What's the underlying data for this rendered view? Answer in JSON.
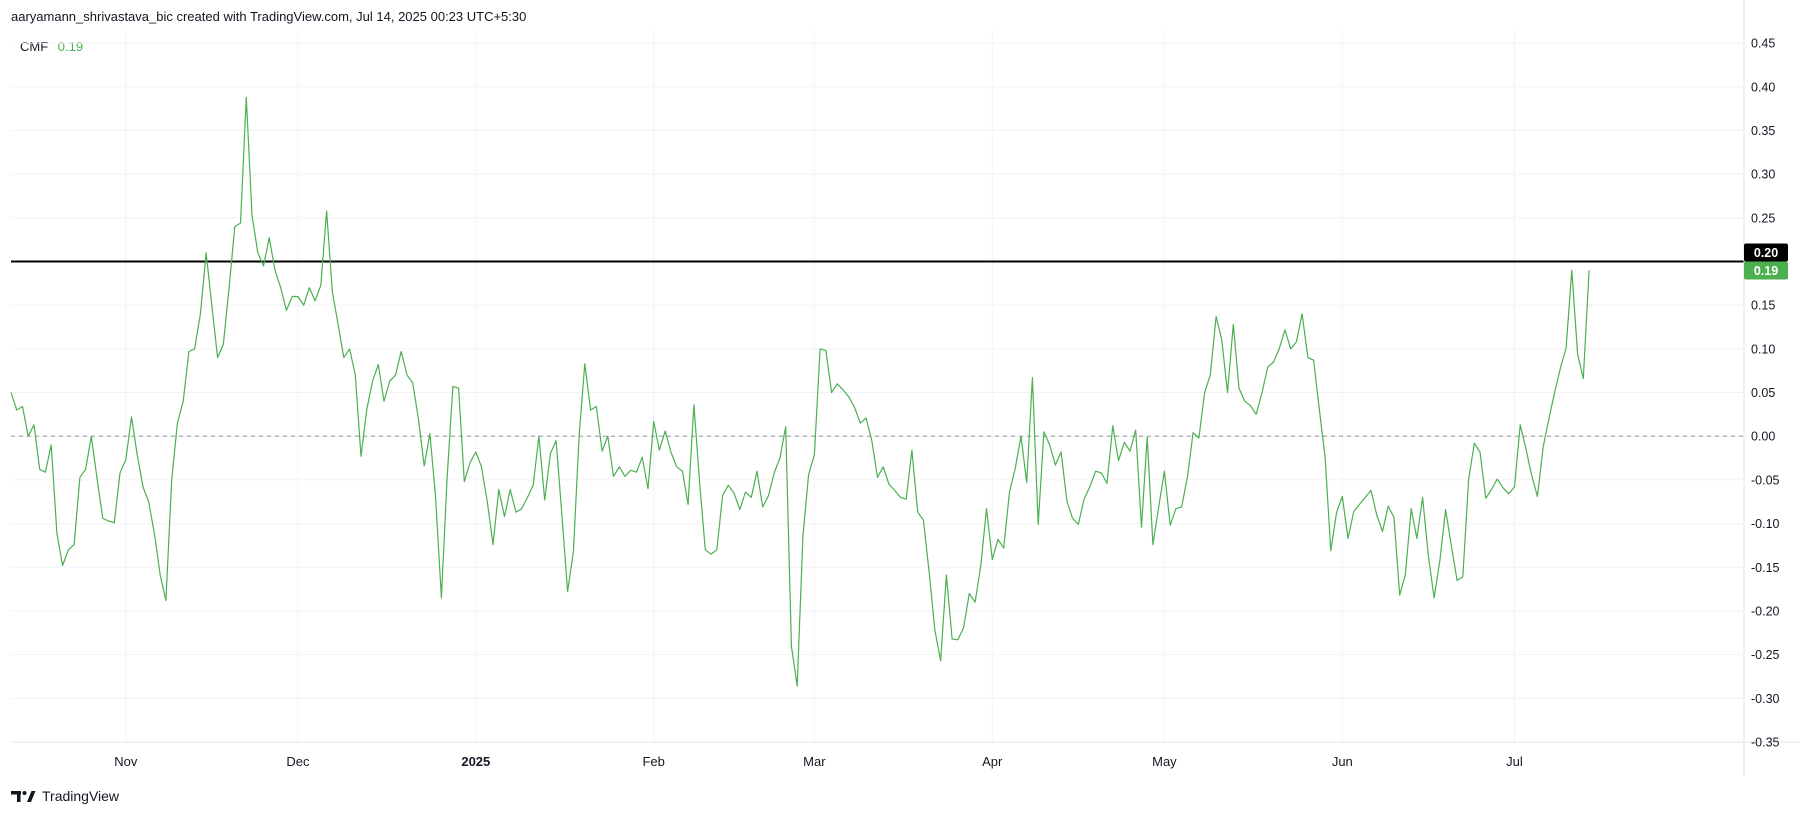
{
  "header": {
    "attribution": "aaryamann_shrivastava_bic created with TradingView.com, Jul 14, 2025 00:23 UTC+5:30"
  },
  "legend": {
    "indicator": "CMF",
    "value": "0.19"
  },
  "footer": {
    "brand": "TradingView",
    "logo_icon": "tradingview-logo-icon"
  },
  "colors": {
    "series": "#4caf50",
    "reference_line": "#000000",
    "grid": "#f0f3fa",
    "axis_text": "#131722",
    "zero_line": "#9598a1"
  },
  "chart_data": {
    "type": "line",
    "x_axis": {
      "type": "date",
      "range": [
        "2024-10-12",
        "2025-08-10"
      ],
      "ticks": [
        {
          "date": "2024-11-01",
          "label": "Nov",
          "bold": false
        },
        {
          "date": "2024-12-01",
          "label": "Dec",
          "bold": false
        },
        {
          "date": "2025-01-01",
          "label": "2025",
          "bold": true
        },
        {
          "date": "2025-02-01",
          "label": "Feb",
          "bold": false
        },
        {
          "date": "2025-03-01",
          "label": "Mar",
          "bold": false
        },
        {
          "date": "2025-04-01",
          "label": "Apr",
          "bold": false
        },
        {
          "date": "2025-05-01",
          "label": "May",
          "bold": false
        },
        {
          "date": "2025-06-01",
          "label": "Jun",
          "bold": false
        },
        {
          "date": "2025-07-01",
          "label": "Jul",
          "bold": false
        }
      ]
    },
    "y_axis": {
      "range": [
        -0.35,
        0.465
      ],
      "ticks": [
        "0.45",
        "0.40",
        "0.35",
        "0.30",
        "0.25",
        "0.20",
        "0.15",
        "0.10",
        "0.05",
        "0.00",
        "-0.05",
        "-0.10",
        "-0.15",
        "-0.20",
        "-0.25",
        "-0.30",
        "-0.35"
      ]
    },
    "grid": true,
    "zero_line": {
      "value": 0,
      "style": "dashed"
    },
    "reference_line": {
      "value": 0.2,
      "label": "0.20"
    },
    "last_value_label": "0.19",
    "series": [
      {
        "name": "CMF",
        "start": "2024-10-12",
        "step_days": 1,
        "values": [
          0.05,
          0.03,
          0.034,
          0.0,
          0.013,
          -0.038,
          -0.041,
          -0.01,
          -0.111,
          -0.148,
          -0.13,
          -0.124,
          -0.047,
          -0.038,
          0.0,
          -0.049,
          -0.094,
          -0.097,
          -0.099,
          -0.042,
          -0.027,
          0.022,
          -0.021,
          -0.058,
          -0.075,
          -0.112,
          -0.159,
          -0.188,
          -0.05,
          0.015,
          0.04,
          0.097,
          0.1,
          0.14,
          0.21,
          0.15,
          0.09,
          0.105,
          0.17,
          0.24,
          0.244,
          0.388,
          0.253,
          0.21,
          0.195,
          0.227,
          0.19,
          0.17,
          0.144,
          0.16,
          0.16,
          0.15,
          0.17,
          0.155,
          0.173,
          0.258,
          0.165,
          0.128,
          0.09,
          0.1,
          0.07,
          -0.023,
          0.031,
          0.063,
          0.082,
          0.04,
          0.063,
          0.07,
          0.097,
          0.07,
          0.061,
          0.02,
          -0.034,
          0.003,
          -0.07,
          -0.185,
          -0.048,
          0.057,
          0.055,
          -0.052,
          -0.03,
          -0.018,
          -0.035,
          -0.075,
          -0.124,
          -0.061,
          -0.092,
          -0.061,
          -0.087,
          -0.083,
          -0.07,
          -0.056,
          0.0,
          -0.073,
          -0.02,
          -0.005,
          -0.09,
          -0.178,
          -0.132,
          0.0,
          0.083,
          0.03,
          0.034,
          -0.017,
          0.0,
          -0.046,
          -0.035,
          -0.046,
          -0.039,
          -0.041,
          -0.024,
          -0.06,
          0.017,
          -0.016,
          0.006,
          -0.018,
          -0.035,
          -0.04,
          -0.078,
          0.036,
          -0.053,
          -0.13,
          -0.135,
          -0.13,
          -0.068,
          -0.056,
          -0.065,
          -0.084,
          -0.064,
          -0.07,
          -0.04,
          -0.081,
          -0.068,
          -0.042,
          -0.025,
          0.011,
          -0.24,
          -0.286,
          -0.115,
          -0.044,
          -0.021,
          0.1,
          0.098,
          0.05,
          0.06,
          0.053,
          0.045,
          0.033,
          0.015,
          0.021,
          -0.005,
          -0.047,
          -0.035,
          -0.055,
          -0.062,
          -0.07,
          -0.072,
          -0.016,
          -0.087,
          -0.096,
          -0.155,
          -0.222,
          -0.257,
          -0.159,
          -0.232,
          -0.233,
          -0.219,
          -0.18,
          -0.19,
          -0.148,
          -0.083,
          -0.141,
          -0.118,
          -0.128,
          -0.064,
          -0.037,
          0.0,
          -0.053,
          0.067,
          -0.101,
          0.005,
          -0.01,
          -0.033,
          -0.018,
          -0.074,
          -0.094,
          -0.101,
          -0.072,
          -0.058,
          -0.04,
          -0.042,
          -0.054,
          0.012,
          -0.028,
          -0.007,
          -0.017,
          0.007,
          -0.104,
          -0.001,
          -0.124,
          -0.081,
          -0.04,
          -0.102,
          -0.083,
          -0.081,
          -0.047,
          0.004,
          -0.002,
          0.05,
          0.07,
          0.137,
          0.11,
          0.05,
          0.128,
          0.055,
          0.04,
          0.035,
          0.025,
          0.05,
          0.079,
          0.085,
          0.1,
          0.122,
          0.1,
          0.108,
          0.14,
          0.09,
          0.087,
          0.03,
          -0.024,
          -0.131,
          -0.087,
          -0.069,
          -0.117,
          -0.086,
          -0.078,
          -0.07,
          -0.062,
          -0.09,
          -0.109,
          -0.08,
          -0.093,
          -0.182,
          -0.158,
          -0.083,
          -0.117,
          -0.07,
          -0.137,
          -0.185,
          -0.142,
          -0.084,
          -0.125,
          -0.165,
          -0.161,
          -0.05,
          -0.008,
          -0.018,
          -0.071,
          -0.061,
          -0.049,
          -0.059,
          -0.066,
          -0.058,
          0.013,
          -0.014,
          -0.045,
          -0.069,
          -0.012,
          0.02,
          0.05,
          0.078,
          0.101,
          0.19,
          0.094,
          0.066,
          0.19
        ]
      }
    ]
  }
}
